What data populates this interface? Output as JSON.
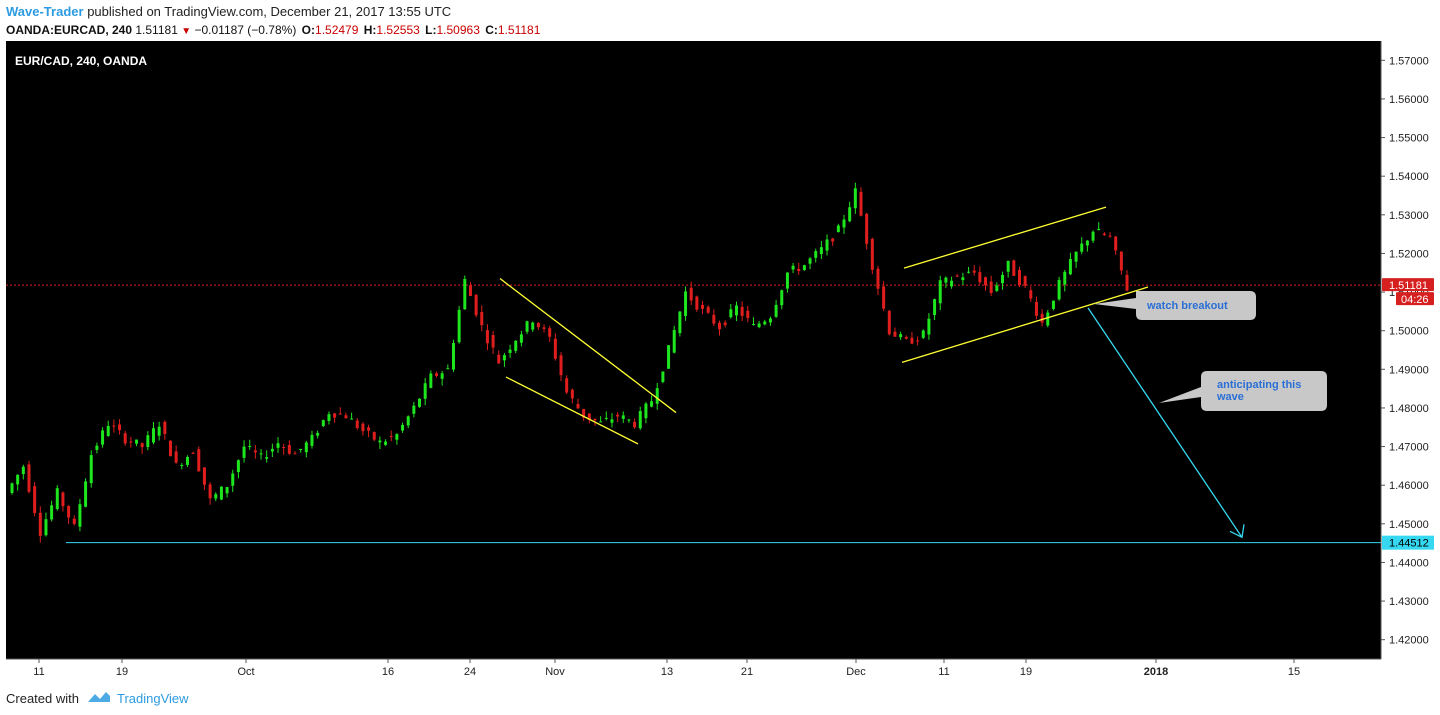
{
  "header": {
    "author": "Wave-Trader",
    "published": "published on TradingView.com, December 21, 2017 13:55 UTC",
    "symbol": "OANDA:EURCAD, 240",
    "last": "1.51181",
    "change": "−0.01187 (−0.78%)",
    "o_label": "O:",
    "o_value": "1.52479",
    "h_label": "H:",
    "h_value": "1.52553",
    "l_label": "L:",
    "l_value": "1.50963",
    "c_label": "C:",
    "c_value": "1.51181"
  },
  "footer": {
    "created_with": "Created with",
    "brand": "TradingView"
  },
  "colors": {
    "background": "#000000",
    "up": "#1ee61e",
    "down": "#e01e1e",
    "trendline": "#ffff33",
    "target": "#35d8f0",
    "price_line": "#d62020",
    "callout": "#c8c8c8"
  },
  "chart_data": {
    "type": "candlestick",
    "title": "EUR/CAD, 240, OANDA",
    "ylim": [
      1.415,
      1.575
    ],
    "y_ticks": [
      "1.57000",
      "1.56000",
      "1.55000",
      "1.54000",
      "1.53000",
      "1.52000",
      "1.51000",
      "1.50000",
      "1.49000",
      "1.48000",
      "1.47000",
      "1.46000",
      "1.45000",
      "1.44000",
      "1.43000",
      "1.42000"
    ],
    "x_ticks": [
      "11",
      "19",
      "Oct",
      "16",
      "24",
      "Nov",
      "13",
      "21",
      "Dec",
      "11",
      "19",
      "2018",
      "15"
    ],
    "last_price": {
      "value": 1.51181,
      "label": "1.51181",
      "countdown": "04:26"
    },
    "support_level": {
      "value": 1.44512,
      "label": "1.44512"
    },
    "annotations": [
      "watch breakout",
      "anticipating this wave"
    ],
    "price_path": [
      [
        0,
        1.458
      ],
      [
        3,
        1.465
      ],
      [
        6,
        1.448
      ],
      [
        9,
        1.458
      ],
      [
        12,
        1.449
      ],
      [
        15,
        1.468
      ],
      [
        18,
        1.476
      ],
      [
        21,
        1.472
      ],
      [
        24,
        1.47
      ],
      [
        27,
        1.476
      ],
      [
        30,
        1.465
      ],
      [
        33,
        1.469
      ],
      [
        36,
        1.456
      ],
      [
        39,
        1.46
      ],
      [
        42,
        1.47
      ],
      [
        45,
        1.467
      ],
      [
        48,
        1.471
      ],
      [
        51,
        1.468
      ],
      [
        54,
        1.472
      ],
      [
        57,
        1.479
      ],
      [
        60,
        1.478
      ],
      [
        63,
        1.474
      ],
      [
        66,
        1.471
      ],
      [
        69,
        1.473
      ],
      [
        72,
        1.48
      ],
      [
        75,
        1.488
      ],
      [
        78,
        1.49
      ],
      [
        81,
        1.513
      ],
      [
        84,
        1.501
      ],
      [
        87,
        1.492
      ],
      [
        90,
        1.498
      ],
      [
        93,
        1.503
      ],
      [
        96,
        1.498
      ],
      [
        99,
        1.484
      ],
      [
        102,
        1.478
      ],
      [
        105,
        1.476
      ],
      [
        108,
        1.478
      ],
      [
        111,
        1.476
      ],
      [
        114,
        1.482
      ],
      [
        117,
        1.495
      ],
      [
        120,
        1.51
      ],
      [
        123,
        1.505
      ],
      [
        126,
        1.501
      ],
      [
        129,
        1.506
      ],
      [
        132,
        1.501
      ],
      [
        135,
        1.504
      ],
      [
        138,
        1.515
      ],
      [
        141,
        1.517
      ],
      [
        144,
        1.521
      ],
      [
        147,
        1.526
      ],
      [
        150,
        1.536
      ],
      [
        153,
        1.517
      ],
      [
        156,
        1.5
      ],
      [
        159,
        1.497
      ],
      [
        162,
        1.499
      ],
      [
        165,
        1.512
      ],
      [
        168,
        1.514
      ],
      [
        171,
        1.515
      ],
      [
        174,
        1.51
      ],
      [
        177,
        1.517
      ],
      [
        180,
        1.511
      ],
      [
        183,
        1.502
      ],
      [
        186,
        1.512
      ],
      [
        189,
        1.52
      ],
      [
        192,
        1.526
      ],
      [
        195,
        1.524
      ],
      [
        198,
        1.511
      ]
    ]
  }
}
